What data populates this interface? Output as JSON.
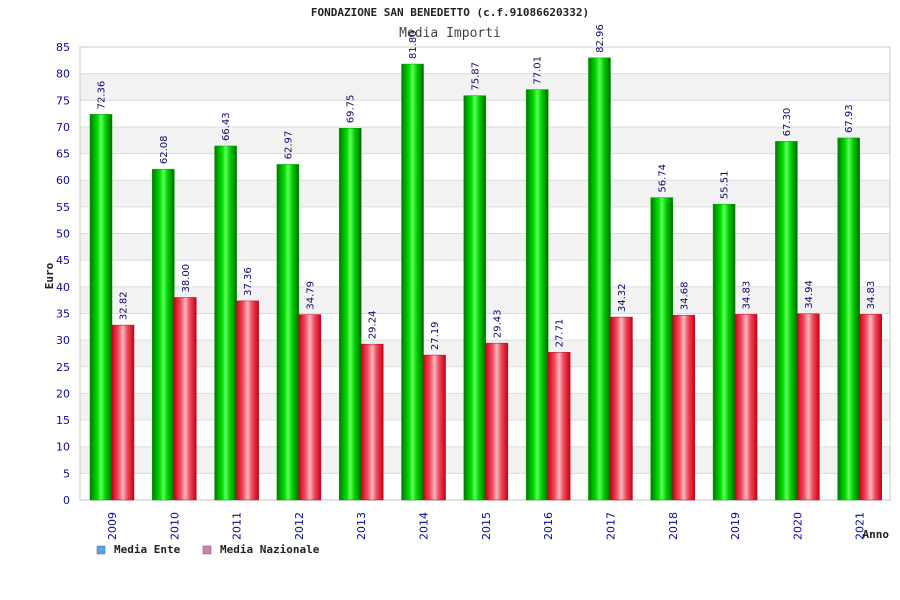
{
  "chart_data": {
    "type": "bar",
    "title": "FONDAZIONE SAN BENEDETTO (c.f.91086620332)",
    "subtitle": "Media Importi",
    "xlabel": "Anno",
    "ylabel": "Euro",
    "ylim": [
      0,
      85
    ],
    "ytick_step": 5,
    "grid": true,
    "legend_position": "bottom-left",
    "categories": [
      "2009",
      "2010",
      "2011",
      "2012",
      "2013",
      "2014",
      "2015",
      "2016",
      "2017",
      "2018",
      "2019",
      "2020",
      "2021"
    ],
    "series": [
      {
        "name": "Media Ente",
        "color": "#00c000",
        "legend_color": "#5aa0e6",
        "values": [
          72.36,
          62.08,
          66.43,
          62.97,
          69.75,
          81.8,
          75.87,
          77.01,
          82.96,
          56.74,
          55.51,
          67.3,
          67.93
        ],
        "labels": [
          "72.36",
          "62.08",
          "66.43",
          "62.97",
          "69.75",
          "81.80",
          "75.87",
          "77.01",
          "82.96",
          "56.74",
          "55.51",
          "67.30",
          "67.93"
        ]
      },
      {
        "name": "Media Nazionale",
        "color": "#e8102a",
        "legend_color": "#d97cb0",
        "values": [
          32.82,
          38.0,
          37.36,
          34.79,
          29.24,
          27.19,
          29.43,
          27.71,
          34.32,
          34.68,
          34.83,
          34.94,
          34.83
        ],
        "labels": [
          "32.82",
          "38.00",
          "37.36",
          "34.79",
          "29.24",
          "27.19",
          "29.43",
          "27.71",
          "34.32",
          "34.68",
          "34.83",
          "34.94",
          "34.83"
        ]
      }
    ]
  }
}
